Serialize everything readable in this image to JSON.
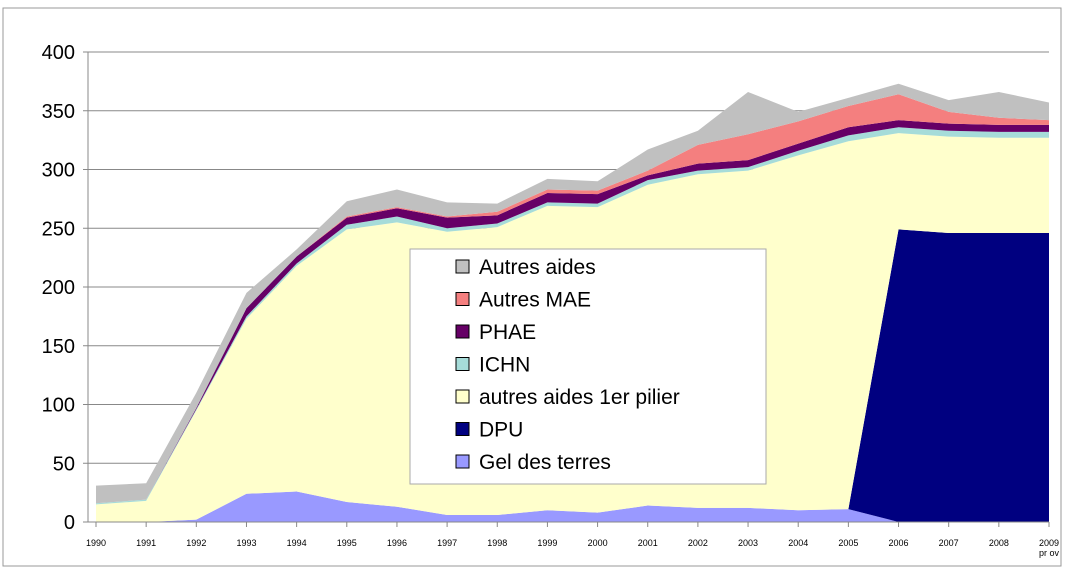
{
  "chart_data": {
    "type": "stacked_area",
    "categories": [
      "1990",
      "1991",
      "1992",
      "1993",
      "1994",
      "1995",
      "1996",
      "1997",
      "1998",
      "1999",
      "2000",
      "2001",
      "2002",
      "2003",
      "2004",
      "2005",
      "2006",
      "2007",
      "2008",
      "2009\npr ov"
    ],
    "series": [
      {
        "name": "Gel des terres",
        "color": "#9999ff",
        "values": [
          0,
          0,
          2,
          24,
          26,
          17,
          13,
          6,
          6,
          10,
          8,
          14,
          12,
          12,
          10,
          11,
          0,
          0,
          0,
          0
        ]
      },
      {
        "name": "DPU",
        "color": "#000080",
        "values": [
          0,
          0,
          0,
          0,
          0,
          0,
          0,
          0,
          0,
          0,
          0,
          0,
          0,
          0,
          0,
          0,
          249,
          246,
          246,
          246
        ]
      },
      {
        "name": "autres aides 1er pilier",
        "color": "#ffffcc",
        "values": [
          15,
          18,
          93,
          149,
          192,
          232,
          242,
          241,
          245,
          259,
          260,
          273,
          284,
          287,
          302,
          313,
          82,
          82,
          81,
          81
        ]
      },
      {
        "name": "ICHN",
        "color": "#a6dcd9",
        "values": [
          1,
          1,
          1,
          2,
          2,
          4,
          5,
          3,
          3,
          3,
          3,
          4,
          3,
          3,
          4,
          5,
          5,
          5,
          5,
          5
        ]
      },
      {
        "name": "PHAE",
        "color": "#660066",
        "values": [
          0,
          0,
          1,
          7,
          6,
          6,
          7,
          9,
          7,
          8,
          8,
          4,
          6,
          6,
          6,
          7,
          6,
          6,
          6,
          6
        ]
      },
      {
        "name": "Autres MAE",
        "color": "#f47f7f",
        "values": [
          0,
          0,
          0,
          0,
          0,
          1,
          1,
          1,
          3,
          3,
          3,
          4,
          16,
          22,
          19,
          18,
          22,
          10,
          6,
          4
        ]
      },
      {
        "name": "Autres aides",
        "color": "#c0c0c0",
        "values": [
          15,
          14,
          13,
          13,
          6,
          13,
          15,
          12,
          7,
          9,
          8,
          18,
          12,
          36,
          8,
          7,
          9,
          10,
          22,
          15
        ]
      }
    ],
    "ylim": [
      0,
      400
    ],
    "yticks": [
      0,
      50,
      100,
      150,
      200,
      250,
      300,
      350,
      400
    ],
    "grid": true
  }
}
